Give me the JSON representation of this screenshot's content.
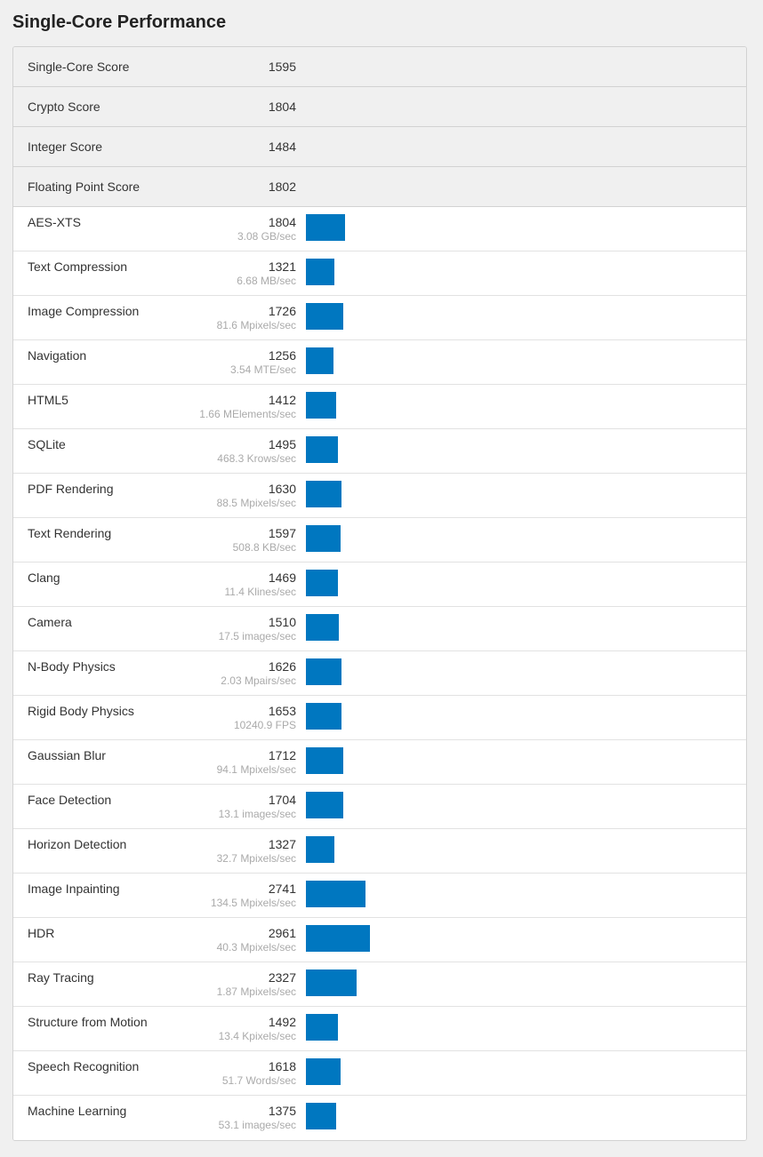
{
  "page": {
    "title": "Single-Core Performance",
    "bar_color": "#0077c0"
  },
  "summary": [
    {
      "label": "Single-Core Score",
      "score": "1595"
    },
    {
      "label": "Crypto Score",
      "score": "1804"
    },
    {
      "label": "Integer Score",
      "score": "1484"
    },
    {
      "label": "Floating Point Score",
      "score": "1802"
    }
  ],
  "benchmarks": [
    {
      "label": "AES-XTS",
      "score": "1804",
      "desc": "3.08 GB/sec"
    },
    {
      "label": "Text Compression",
      "score": "1321",
      "desc": "6.68 MB/sec"
    },
    {
      "label": "Image Compression",
      "score": "1726",
      "desc": "81.6 Mpixels/sec"
    },
    {
      "label": "Navigation",
      "score": "1256",
      "desc": "3.54 MTE/sec"
    },
    {
      "label": "HTML5",
      "score": "1412",
      "desc": "1.66 MElements/sec"
    },
    {
      "label": "SQLite",
      "score": "1495",
      "desc": "468.3 Krows/sec"
    },
    {
      "label": "PDF Rendering",
      "score": "1630",
      "desc": "88.5 Mpixels/sec"
    },
    {
      "label": "Text Rendering",
      "score": "1597",
      "desc": "508.8 KB/sec"
    },
    {
      "label": "Clang",
      "score": "1469",
      "desc": "11.4 Klines/sec"
    },
    {
      "label": "Camera",
      "score": "1510",
      "desc": "17.5 images/sec"
    },
    {
      "label": "N-Body Physics",
      "score": "1626",
      "desc": "2.03 Mpairs/sec"
    },
    {
      "label": "Rigid Body Physics",
      "score": "1653",
      "desc": "10240.9 FPS"
    },
    {
      "label": "Gaussian Blur",
      "score": "1712",
      "desc": "94.1 Mpixels/sec"
    },
    {
      "label": "Face Detection",
      "score": "1704",
      "desc": "13.1 images/sec"
    },
    {
      "label": "Horizon Detection",
      "score": "1327",
      "desc": "32.7 Mpixels/sec"
    },
    {
      "label": "Image Inpainting",
      "score": "2741",
      "desc": "134.5 Mpixels/sec"
    },
    {
      "label": "HDR",
      "score": "2961",
      "desc": "40.3 Mpixels/sec"
    },
    {
      "label": "Ray Tracing",
      "score": "2327",
      "desc": "1.87 Mpixels/sec"
    },
    {
      "label": "Structure from Motion",
      "score": "1492",
      "desc": "13.4 Kpixels/sec"
    },
    {
      "label": "Speech Recognition",
      "score": "1618",
      "desc": "51.7 Words/sec"
    },
    {
      "label": "Machine Learning",
      "score": "1375",
      "desc": "53.1 images/sec"
    }
  ]
}
